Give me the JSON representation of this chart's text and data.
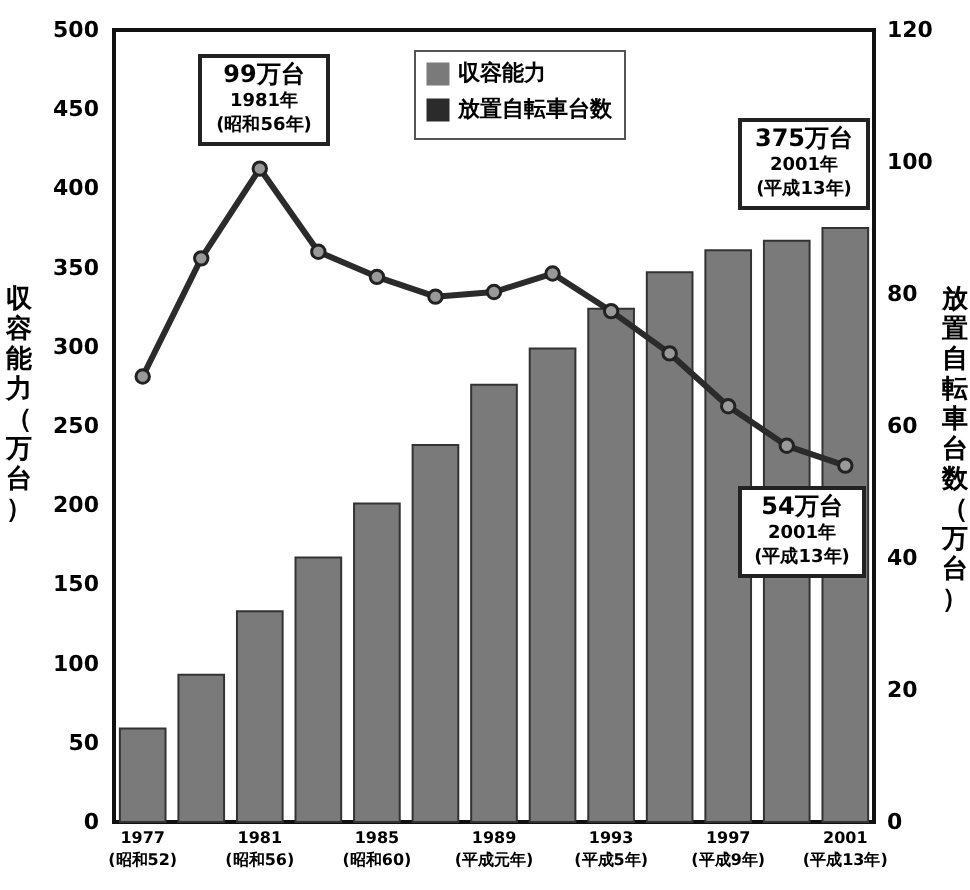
{
  "chart_data": {
    "type": "bar",
    "ylabel": "収容能力（万台）",
    "y2label": "放置自転車台数（万台）",
    "categories": [
      "1977\n(昭和52)",
      null,
      "1981\n(昭和56)",
      null,
      "1985\n(昭和60)",
      null,
      "1989\n(平成元年)",
      null,
      "1993\n(平成5年)",
      null,
      "1997\n(平成9年)",
      null,
      "2001\n(平成13年)"
    ],
    "series": [
      {
        "name": "収容能力",
        "color": "#7a7a7a",
        "values": [
          59,
          93,
          133,
          167,
          201,
          238,
          276,
          299,
          324,
          347,
          361,
          367,
          375
        ]
      },
      {
        "name": "放置自転車台数",
        "type": "line",
        "axis": "y2",
        "color": "#2b2b2b",
        "values": [
          67.5,
          85.4,
          99,
          86.4,
          82.6,
          79.6,
          80.3,
          83.1,
          77.4,
          71,
          63,
          57,
          54
        ]
      }
    ],
    "ylim": [
      0,
      500
    ],
    "yticks": [
      0,
      50,
      100,
      150,
      200,
      250,
      300,
      350,
      400,
      450,
      500
    ],
    "y2lim": [
      0,
      120
    ],
    "y2ticks": [
      0,
      20,
      40,
      60,
      80,
      100,
      120
    ],
    "marker": "circle",
    "grid": false,
    "legend": "top",
    "annotations": [
      "99万台\n1981年\n(昭和56年)",
      "375万台\n2001年\n(平成13年)",
      "54万台\n2001年\n(平成13年)"
    ]
  }
}
